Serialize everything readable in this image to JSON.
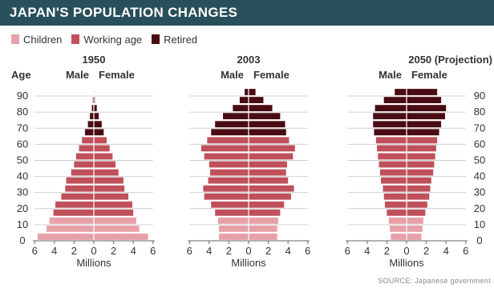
{
  "header": {
    "title": "JAPAN'S POPULATION CHANGES"
  },
  "legend": [
    {
      "label": "Children",
      "color": "#e8a0a8"
    },
    {
      "label": "Working age",
      "color": "#c0505c"
    },
    {
      "label": "Retired",
      "color": "#4a0c14"
    }
  ],
  "source": "SOURCE: Japanese government",
  "chart_data": [
    {
      "type": "bar",
      "title": "1950",
      "left_label": "Male",
      "right_label": "Female",
      "ylabel": "Age",
      "xlabel": "Millions",
      "xlim": [
        6,
        0,
        6
      ],
      "x_ticks": [
        "6",
        "4",
        "2",
        "0",
        "2",
        "4",
        "6"
      ],
      "y_ticks": [
        "0",
        "10",
        "20",
        "30",
        "40",
        "50",
        "60",
        "70",
        "80",
        "90"
      ],
      "age_groups": [
        "0-4",
        "5-9",
        "10-14",
        "15-19",
        "20-24",
        "25-29",
        "30-34",
        "35-39",
        "40-44",
        "45-49",
        "50-54",
        "55-59",
        "60-64",
        "65-69",
        "70-74",
        "75-79",
        "80-84",
        "85-89",
        "90-94"
      ],
      "male": [
        5.7,
        4.8,
        4.5,
        4.1,
        3.9,
        3.3,
        2.9,
        2.8,
        2.3,
        2.0,
        1.8,
        1.5,
        1.2,
        0.9,
        0.6,
        0.4,
        0.2,
        0.1,
        0.04
      ],
      "female": [
        5.5,
        4.6,
        4.3,
        4.0,
        3.9,
        3.5,
        3.1,
        3.0,
        2.5,
        2.2,
        1.9,
        1.6,
        1.3,
        1.0,
        0.8,
        0.5,
        0.3,
        0.1,
        0.05
      ]
    },
    {
      "type": "bar",
      "title": "2003",
      "left_label": "Male",
      "right_label": "Female",
      "xlabel": "Millions",
      "xlim": [
        6,
        0,
        6
      ],
      "x_ticks": [
        "6",
        "4",
        "2",
        "0",
        "2",
        "4",
        "6"
      ],
      "age_groups": [
        "0-4",
        "5-9",
        "10-14",
        "15-19",
        "20-24",
        "25-29",
        "30-34",
        "35-39",
        "40-44",
        "45-49",
        "50-54",
        "55-59",
        "60-64",
        "65-69",
        "70-74",
        "75-79",
        "80-84",
        "85-89",
        "90-94"
      ],
      "male": [
        3.0,
        3.0,
        3.1,
        3.4,
        3.8,
        4.5,
        4.6,
        4.1,
        3.9,
        4.0,
        4.5,
        4.8,
        4.2,
        3.8,
        3.4,
        2.6,
        1.6,
        0.9,
        0.4
      ],
      "female": [
        2.9,
        2.9,
        3.0,
        3.2,
        3.6,
        4.3,
        4.6,
        4.0,
        3.8,
        3.9,
        4.5,
        4.7,
        4.1,
        3.8,
        3.7,
        3.2,
        2.4,
        1.5,
        0.7
      ]
    },
    {
      "type": "bar",
      "title": "2050 (Projection)",
      "left_label": "Male",
      "right_label": "Female",
      "xlabel": "Millions",
      "xlim": [
        6,
        0,
        6
      ],
      "x_ticks": [
        "6",
        "4",
        "2",
        "0",
        "2",
        "4",
        "6"
      ],
      "y_ticks": [
        "0",
        "10",
        "20",
        "30",
        "40",
        "50",
        "60",
        "70",
        "80",
        "90"
      ],
      "age_groups": [
        "0-4",
        "5-9",
        "10-14",
        "15-19",
        "20-24",
        "25-29",
        "30-34",
        "35-39",
        "40-44",
        "45-49",
        "50-54",
        "55-59",
        "60-64",
        "65-69",
        "70-74",
        "75-79",
        "80-84",
        "85-89",
        "90-94"
      ],
      "male": [
        1.6,
        1.7,
        1.8,
        2.0,
        2.2,
        2.3,
        2.4,
        2.6,
        2.7,
        2.8,
        2.9,
        3.0,
        3.1,
        3.3,
        3.4,
        3.4,
        3.2,
        2.3,
        1.2
      ],
      "female": [
        1.5,
        1.6,
        1.7,
        1.9,
        2.1,
        2.3,
        2.4,
        2.5,
        2.7,
        2.8,
        2.9,
        3.0,
        3.1,
        3.3,
        3.5,
        3.9,
        4.0,
        3.5,
        3.1
      ]
    }
  ]
}
